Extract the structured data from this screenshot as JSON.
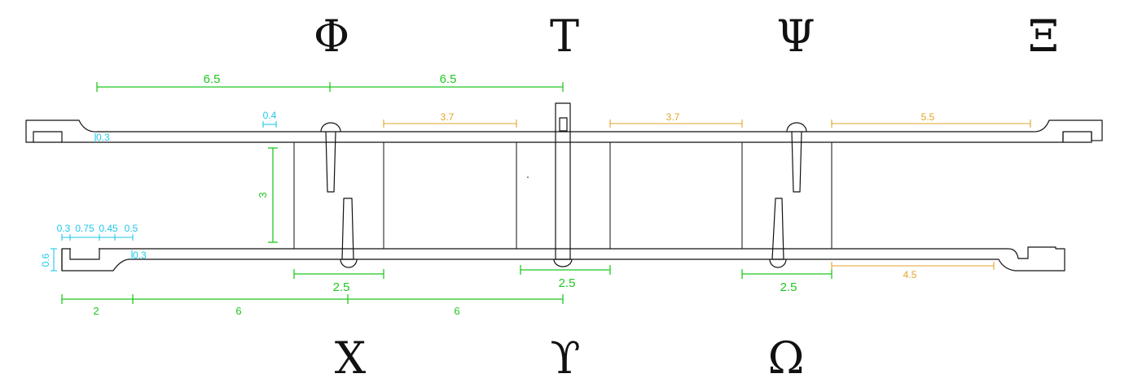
{
  "section_markers": {
    "top": [
      "Φ",
      "Τ",
      "Ψ",
      "Ξ"
    ],
    "bottom": [
      "Χ",
      "ϒ",
      "Ω"
    ]
  },
  "dimensions": {
    "top_left_span": "6.5",
    "top_right_span": "6.5",
    "slot_width": "0.4",
    "edge_radius_left_top": "0.3",
    "panel_gap_left": "3.7",
    "panel_gap_right": "3.7",
    "right_overhang": "5.5",
    "wall_height": "3",
    "lip_a": "0.3",
    "lip_b": "0.75",
    "lip_c": "0.45",
    "lip_d": "0.5",
    "lip_height": "0.6",
    "edge_radius_left_bottom": "0.3",
    "bay_left": "2.5",
    "bay_mid": "2.5",
    "bay_right": "2.5",
    "right_bottom_overhang": "4.5",
    "base_a": "2",
    "base_b": "6",
    "base_c": "6"
  },
  "colors": {
    "outline": "#111111",
    "primary_dimension": "#1fc81f",
    "secondary_dimension": "#e2a52a",
    "detail_dimension": "#1ec8ea"
  }
}
